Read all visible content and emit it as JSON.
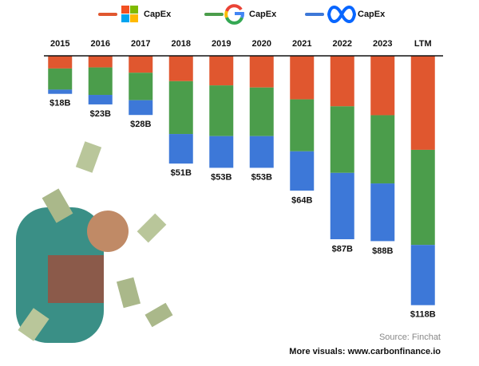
{
  "chart_data": {
    "type": "stacked-bar",
    "categories": [
      "2015",
      "2016",
      "2017",
      "2018",
      "2019",
      "2020",
      "2021",
      "2022",
      "2023",
      "LTM"
    ],
    "series": [
      {
        "name": "CapEx",
        "color": "#e0572f",
        "values": [
          6,
          5.5,
          8,
          12,
          14,
          15,
          20.6,
          23.9,
          28.1,
          44.5
        ]
      },
      {
        "name": "CapEx",
        "color": "#4b9d4b",
        "values": [
          10,
          13,
          13,
          25,
          24,
          23,
          24.6,
          31.5,
          32.3,
          45
        ]
      },
      {
        "name": "CapEx",
        "color": "#3d78d8",
        "values": [
          2,
          4.5,
          7,
          14,
          15,
          15,
          18.6,
          31.4,
          27.3,
          28.5
        ]
      }
    ],
    "totals": {
      "values": [
        18,
        23,
        28,
        51,
        53,
        53,
        64,
        87,
        88,
        118
      ],
      "value_labels": [
        "$18B",
        "$23B",
        "$28B",
        "$51B",
        "$53B",
        "$53B",
        "$64B",
        "$87B",
        "$88B",
        "$118B"
      ]
    },
    "ylim": [
      0,
      120
    ],
    "source": "Source: Finchat",
    "footer": "More visuals: www.carbonfinance.io"
  }
}
